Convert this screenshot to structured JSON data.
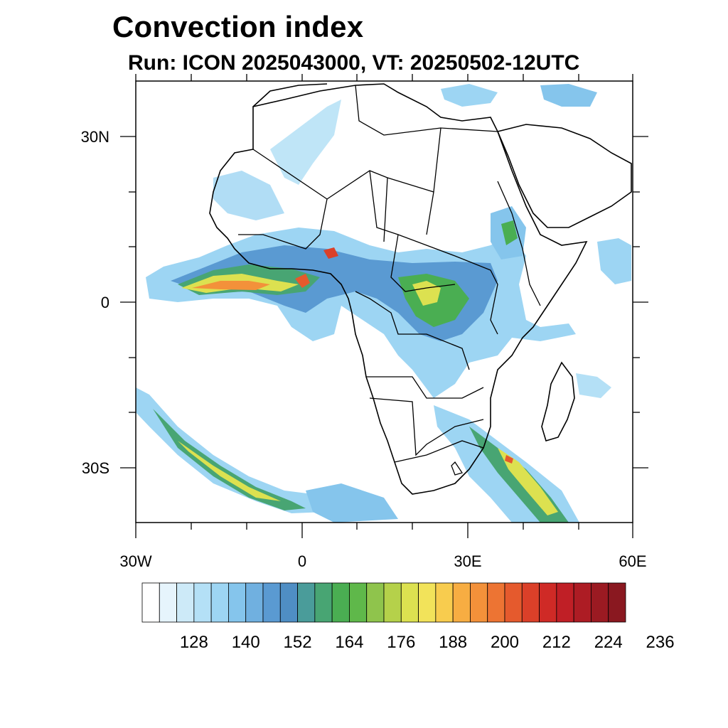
{
  "title": "Convection index",
  "subtitle": "Run: ICON 2025043000,  VT: 20250502-12UTC",
  "map": {
    "lon_range": [
      -30,
      60
    ],
    "lat_range": [
      -40,
      40
    ],
    "lon_ticks": [
      {
        "value": -30,
        "label": "30W"
      },
      {
        "value": 0,
        "label": "0"
      },
      {
        "value": 30,
        "label": "30E"
      },
      {
        "value": 60,
        "label": "60E"
      }
    ],
    "lat_ticks": [
      {
        "value": 30,
        "label": "30N"
      },
      {
        "value": 0,
        "label": "0"
      },
      {
        "value": -30,
        "label": "30S"
      }
    ],
    "coastline_color": "#000000"
  },
  "colorbar": {
    "label_values": [
      "128",
      "140",
      "152",
      "164",
      "176",
      "188",
      "200",
      "212",
      "224",
      "236"
    ],
    "colors": [
      "#ffffff",
      "#e6f4fc",
      "#cdeaf8",
      "#b4e0f6",
      "#9dd5f3",
      "#85c5ec",
      "#70b0e0",
      "#5a9ad2",
      "#4f8ec4",
      "#4a9c9a",
      "#48a573",
      "#4aae52",
      "#5fb84a",
      "#8fc44c",
      "#b5d14a",
      "#dce150",
      "#f2e35a",
      "#f8cc4e",
      "#f7ad42",
      "#f3913a",
      "#ed7433",
      "#e55a2d",
      "#db4029",
      "#cf2a26",
      "#c01f26",
      "#ad1c24",
      "#9b1a22",
      "#8a1820"
    ]
  },
  "features": [
    {
      "name": "itcz-band",
      "color": "#85c5ec"
    },
    {
      "name": "high-convection",
      "color": "#f7ad42"
    }
  ]
}
